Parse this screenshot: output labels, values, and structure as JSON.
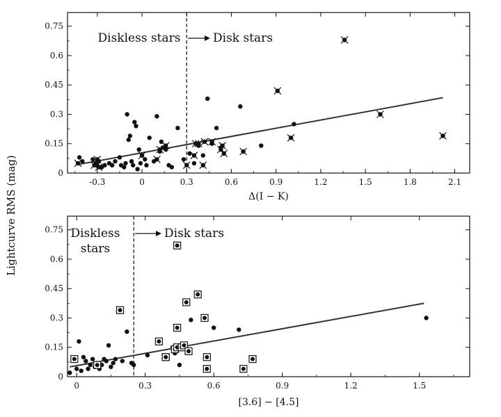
{
  "figure": {
    "ylabel": "Lightcurve RMS (mag)"
  },
  "chart_data": [
    {
      "type": "scatter",
      "xlabel": "Δ(I − K)",
      "ylabel": "Lightcurve RMS (mag)",
      "xlim": [
        -0.5,
        2.2
      ],
      "ylim": [
        0,
        0.82
      ],
      "xticks": [
        "-0.3",
        "0",
        "0.3",
        "0.6",
        "0.9",
        "1.2",
        "1.5",
        "1.8",
        "2.1"
      ],
      "yticks": [
        "0",
        "0.15",
        "0.3",
        "0.45",
        "0.6",
        "0.75"
      ],
      "divider_x": 0.3,
      "annotations": {
        "left": "Diskless stars",
        "right": "Disk stars"
      },
      "fit_line": {
        "x": [
          -0.42,
          2.02
        ],
        "y": [
          0.045,
          0.385
        ]
      },
      "series": [
        {
          "marker": "dot",
          "points": [
            [
              -0.42,
              0.08
            ],
            [
              -0.4,
              0.06
            ],
            [
              -0.33,
              0.07
            ],
            [
              -0.31,
              0.05
            ],
            [
              -0.3,
              0.04
            ],
            [
              -0.29,
              0.06
            ],
            [
              -0.27,
              0.03
            ],
            [
              -0.25,
              0.04
            ],
            [
              -0.22,
              0.05
            ],
            [
              -0.2,
              0.04
            ],
            [
              -0.18,
              0.06
            ],
            [
              -0.15,
              0.08
            ],
            [
              -0.14,
              0.04
            ],
            [
              -0.12,
              0.03
            ],
            [
              -0.11,
              0.05
            ],
            [
              -0.1,
              0.3
            ],
            [
              -0.09,
              0.17
            ],
            [
              -0.08,
              0.19
            ],
            [
              -0.07,
              0.06
            ],
            [
              -0.06,
              0.04
            ],
            [
              -0.05,
              0.26
            ],
            [
              -0.04,
              0.24
            ],
            [
              -0.03,
              0.02
            ],
            [
              -0.02,
              0.12
            ],
            [
              -0.01,
              0.05
            ],
            [
              0.0,
              0.09
            ],
            [
              0.02,
              0.07
            ],
            [
              0.03,
              0.04
            ],
            [
              0.05,
              0.18
            ],
            [
              0.08,
              0.06
            ],
            [
              0.1,
              0.29
            ],
            [
              0.12,
              0.11
            ],
            [
              0.13,
              0.16
            ],
            [
              0.14,
              0.13
            ],
            [
              0.16,
              0.12
            ],
            [
              0.18,
              0.04
            ],
            [
              0.2,
              0.03
            ],
            [
              0.24,
              0.23
            ],
            [
              0.28,
              0.07
            ],
            [
              0.32,
              0.1
            ],
            [
              0.35,
              0.05
            ],
            [
              0.38,
              0.14
            ],
            [
              0.41,
              0.09
            ],
            [
              0.44,
              0.38
            ],
            [
              0.47,
              0.15
            ],
            [
              0.5,
              0.23
            ],
            [
              0.53,
              0.13
            ],
            [
              0.66,
              0.34
            ],
            [
              0.8,
              0.14
            ],
            [
              1.02,
              0.25
            ]
          ]
        },
        {
          "marker": "dot-cross",
          "points": [
            [
              -0.43,
              0.05
            ],
            [
              -0.32,
              0.04
            ],
            [
              -0.3,
              0.07
            ],
            [
              -0.29,
              0.03
            ],
            [
              0.0,
              0.09
            ],
            [
              0.1,
              0.07
            ],
            [
              0.12,
              0.12
            ],
            [
              0.16,
              0.14
            ],
            [
              0.3,
              0.04
            ],
            [
              0.35,
              0.09
            ],
            [
              0.36,
              0.15
            ],
            [
              0.38,
              0.15
            ],
            [
              0.41,
              0.04
            ],
            [
              0.42,
              0.16
            ],
            [
              0.47,
              0.16
            ],
            [
              0.53,
              0.12
            ],
            [
              0.54,
              0.14
            ],
            [
              0.55,
              0.1
            ],
            [
              0.68,
              0.11
            ],
            [
              0.91,
              0.42
            ],
            [
              1.0,
              0.18
            ],
            [
              1.36,
              0.68
            ],
            [
              1.6,
              0.3
            ],
            [
              2.02,
              0.19
            ]
          ]
        }
      ]
    },
    {
      "type": "scatter",
      "xlabel": "[3.6] − [4.5]",
      "ylabel": "Lightcurve RMS (mag)",
      "xlim": [
        -0.04,
        1.72
      ],
      "ylim": [
        0,
        0.82
      ],
      "xticks": [
        "0",
        "0.3",
        "0.6",
        "0.9",
        "1.2",
        "1.5"
      ],
      "yticks": [
        "0",
        "0.15",
        "0.3",
        "0.45",
        "0.6",
        "0.75"
      ],
      "divider_x": 0.25,
      "annotations": {
        "left": "Diskless\nstars",
        "right": "Disk stars"
      },
      "fit_line": {
        "x": [
          -0.03,
          1.52
        ],
        "y": [
          0.05,
          0.375
        ]
      },
      "series": [
        {
          "marker": "dot",
          "points": [
            [
              -0.03,
              0.02
            ],
            [
              0.0,
              0.04
            ],
            [
              0.01,
              0.18
            ],
            [
              0.02,
              0.03
            ],
            [
              0.03,
              0.1
            ],
            [
              0.04,
              0.08
            ],
            [
              0.05,
              0.04
            ],
            [
              0.06,
              0.06
            ],
            [
              0.07,
              0.09
            ],
            [
              0.08,
              0.05
            ],
            [
              0.09,
              0.07
            ],
            [
              0.1,
              0.04
            ],
            [
              0.11,
              0.06
            ],
            [
              0.12,
              0.09
            ],
            [
              0.13,
              0.08
            ],
            [
              0.14,
              0.16
            ],
            [
              0.15,
              0.05
            ],
            [
              0.16,
              0.07
            ],
            [
              0.17,
              0.09
            ],
            [
              0.2,
              0.08
            ],
            [
              0.22,
              0.23
            ],
            [
              0.24,
              0.07
            ],
            [
              0.25,
              0.06
            ],
            [
              0.31,
              0.11
            ],
            [
              0.42,
              0.15
            ],
            [
              0.43,
              0.12
            ],
            [
              0.45,
              0.06
            ],
            [
              0.5,
              0.29
            ],
            [
              0.6,
              0.25
            ],
            [
              0.71,
              0.24
            ],
            [
              1.53,
              0.3
            ]
          ]
        },
        {
          "marker": "dot-square",
          "points": [
            [
              -0.01,
              0.09
            ],
            [
              0.09,
              0.06
            ],
            [
              0.19,
              0.34
            ],
            [
              0.36,
              0.18
            ],
            [
              0.39,
              0.1
            ],
            [
              0.39,
              0.1
            ],
            [
              0.43,
              0.14
            ],
            [
              0.44,
              0.67
            ],
            [
              0.44,
              0.15
            ],
            [
              0.44,
              0.25
            ],
            [
              0.46,
              0.15
            ],
            [
              0.47,
              0.16
            ],
            [
              0.48,
              0.38
            ],
            [
              0.49,
              0.13
            ],
            [
              0.53,
              0.42
            ],
            [
              0.56,
              0.3
            ],
            [
              0.57,
              0.1
            ],
            [
              0.57,
              0.04
            ],
            [
              0.73,
              0.04
            ],
            [
              0.77,
              0.09
            ]
          ]
        }
      ]
    }
  ]
}
